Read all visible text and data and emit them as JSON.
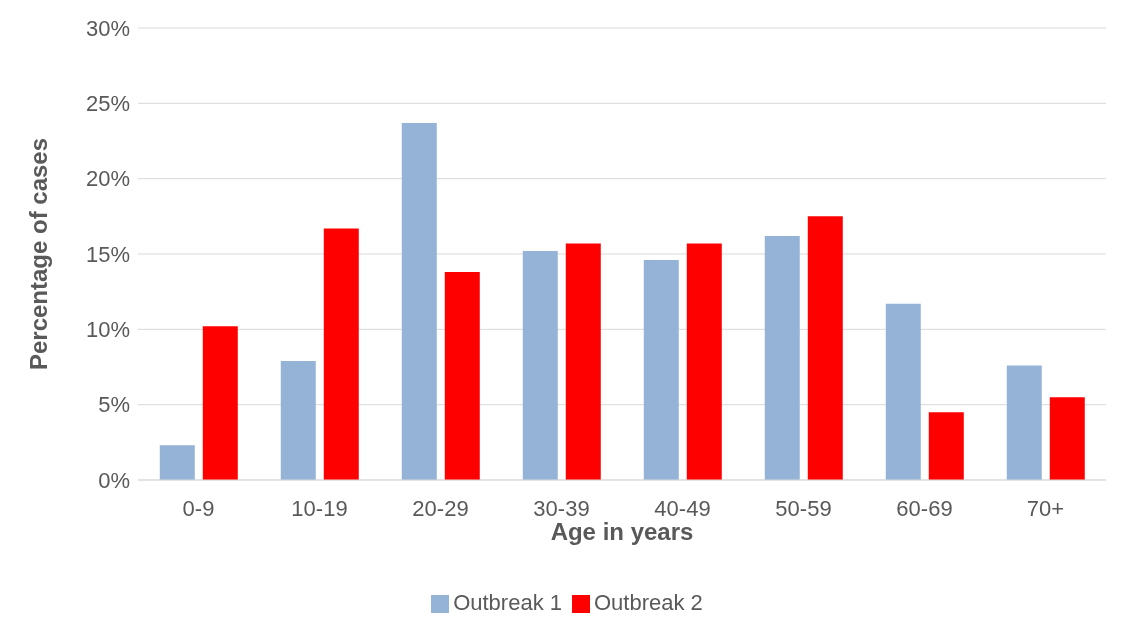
{
  "chart_data": {
    "type": "bar",
    "xlabel": "Age in years",
    "ylabel": "Percentage of cases",
    "categories": [
      "0-9",
      "10-19",
      "20-29",
      "30-39",
      "40-49",
      "50-59",
      "60-69",
      "70+"
    ],
    "series": [
      {
        "name": "Outbreak 1",
        "color": "#95b3d7",
        "values": [
          2.3,
          7.9,
          23.7,
          15.2,
          14.6,
          16.2,
          11.7,
          7.6
        ]
      },
      {
        "name": "Outbreak 2",
        "color": "#ff0000",
        "values": [
          10.2,
          16.7,
          13.8,
          15.7,
          15.7,
          17.5,
          4.5,
          5.5
        ]
      }
    ],
    "ylim": [
      0,
      30
    ],
    "yticks": [
      {
        "value": 0,
        "label": "0%"
      },
      {
        "value": 5,
        "label": "5%"
      },
      {
        "value": 10,
        "label": "10%"
      },
      {
        "value": 15,
        "label": "15%"
      },
      {
        "value": 20,
        "label": "20%"
      },
      {
        "value": 25,
        "label": "25%"
      },
      {
        "value": 30,
        "label": "30%"
      }
    ],
    "grid": "y",
    "legend": "bottom"
  }
}
